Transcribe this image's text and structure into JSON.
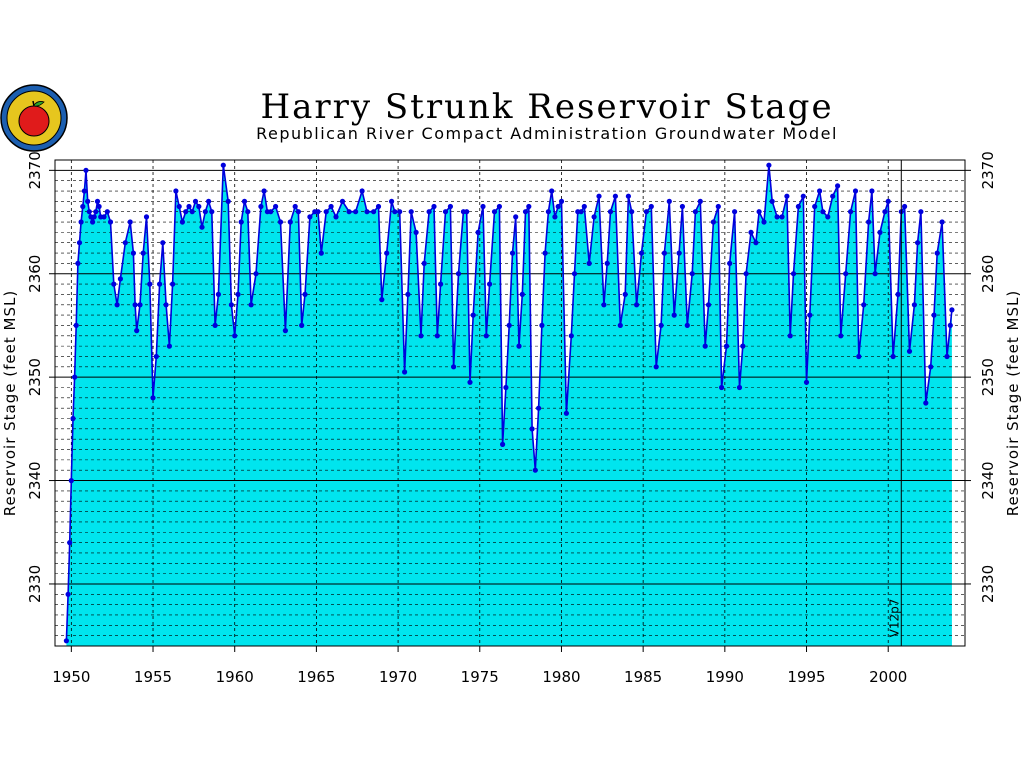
{
  "chart_data": {
    "type": "area",
    "title": "Harry Strunk Reservoir Stage",
    "subtitle": "Republican River Compact Administration Groundwater Model",
    "ylabel": "Reservoir Stage (feet MSL)",
    "xlim": [
      1949.0,
      2004.7
    ],
    "ylim": [
      2324,
      2371
    ],
    "x_ticks": [
      1950,
      1955,
      1960,
      1965,
      1970,
      1975,
      1980,
      1985,
      1990,
      1995,
      2000
    ],
    "y_ticks": [
      2330,
      2340,
      2350,
      2360,
      2370
    ],
    "grid": true,
    "fill_color": "#00e5ee",
    "line_color": "#0000dd",
    "annotation": {
      "text": "V12p7",
      "x": 2000.8
    },
    "series": [
      {
        "x": [
          1949.7,
          1949.8,
          1949.9,
          1950.0,
          1950.1,
          1950.2,
          1950.3,
          1950.4,
          1950.5,
          1950.6,
          1950.7,
          1950.8,
          1950.9,
          1951.0,
          1951.1,
          1951.2,
          1951.3,
          1951.4,
          1951.5,
          1951.6,
          1951.7,
          1951.8,
          1952.0,
          1952.2,
          1952.4,
          1952.6,
          1952.8,
          1953.0,
          1953.3,
          1953.6,
          1953.8,
          1953.9,
          1954.0,
          1954.2,
          1954.4,
          1954.6,
          1954.8,
          1955.0,
          1955.2,
          1955.4,
          1955.6,
          1955.8,
          1956.0,
          1956.2,
          1956.4,
          1956.6,
          1956.8,
          1957.0,
          1957.2,
          1957.4,
          1957.6,
          1957.8,
          1958.0,
          1958.2,
          1958.4,
          1958.6,
          1958.8,
          1959.0,
          1959.3,
          1959.6,
          1959.8,
          1960.0,
          1960.2,
          1960.4,
          1960.6,
          1960.8,
          1961.0,
          1961.3,
          1961.6,
          1961.8,
          1962.0,
          1962.2,
          1962.5,
          1962.8,
          1963.1,
          1963.4,
          1963.7,
          1963.9,
          1964.1,
          1964.3,
          1964.6,
          1964.9,
          1965.1,
          1965.3,
          1965.6,
          1965.9,
          1966.2,
          1966.6,
          1967.0,
          1967.4,
          1967.8,
          1968.1,
          1968.5,
          1968.8,
          1969.0,
          1969.3,
          1969.6,
          1969.8,
          1970.1,
          1970.4,
          1970.6,
          1970.8,
          1971.1,
          1971.4,
          1971.6,
          1971.9,
          1972.2,
          1972.4,
          1972.6,
          1972.9,
          1973.2,
          1973.4,
          1973.7,
          1974.0,
          1974.2,
          1974.4,
          1974.6,
          1974.9,
          1975.2,
          1975.4,
          1975.6,
          1975.9,
          1976.2,
          1976.4,
          1976.6,
          1976.8,
          1977.0,
          1977.2,
          1977.4,
          1977.6,
          1977.8,
          1978.0,
          1978.2,
          1978.4,
          1978.6,
          1978.8,
          1979.0,
          1979.2,
          1979.4,
          1979.6,
          1979.8,
          1980.0,
          1980.3,
          1980.6,
          1980.8,
          1981.0,
          1981.2,
          1981.4,
          1981.7,
          1982.0,
          1982.3,
          1982.6,
          1982.8,
          1983.0,
          1983.3,
          1983.6,
          1983.9,
          1984.1,
          1984.3,
          1984.6,
          1984.9,
          1985.2,
          1985.5,
          1985.8,
          1986.1,
          1986.3,
          1986.6,
          1986.9,
          1987.2,
          1987.4,
          1987.7,
          1988.0,
          1988.2,
          1988.5,
          1988.8,
          1989.0,
          1989.3,
          1989.6,
          1989.8,
          1990.1,
          1990.3,
          1990.6,
          1990.9,
          1991.1,
          1991.3,
          1991.6,
          1991.9,
          1992.1,
          1992.4,
          1992.7,
          1992.9,
          1993.2,
          1993.5,
          1993.8,
          1994.0,
          1994.2,
          1994.5,
          1994.8,
          1995.0,
          1995.2,
          1995.5,
          1995.8,
          1996.0,
          1996.3,
          1996.6,
          1996.9,
          1997.1,
          1997.4,
          1997.7,
          1998.0,
          1998.2,
          1998.5,
          1998.8,
          1999.0,
          1999.2,
          1999.5,
          1999.8,
          2000.0,
          2000.3,
          2000.6,
          2000.8,
          2001.0,
          2001.3,
          2001.6,
          2001.8,
          2002.0,
          2002.3,
          2002.6,
          2002.8,
          2003.0,
          2003.3,
          2003.6,
          2003.8,
          2003.9
        ],
        "values": [
          2324.5,
          2329.0,
          2334.0,
          2340.0,
          2346.0,
          2350.0,
          2355.0,
          2361.0,
          2363.0,
          2365.0,
          2366.5,
          2368.0,
          2370.0,
          2367.0,
          2366.0,
          2365.5,
          2365.0,
          2365.5,
          2366.0,
          2367.0,
          2366.5,
          2365.5,
          2365.5,
          2366.0,
          2365.0,
          2359.0,
          2357.0,
          2359.5,
          2363.0,
          2365.0,
          2362.0,
          2357.0,
          2354.5,
          2357.0,
          2362.0,
          2365.5,
          2359.0,
          2348.0,
          2352.0,
          2359.0,
          2363.0,
          2357.0,
          2353.0,
          2359.0,
          2368.0,
          2366.5,
          2365.0,
          2366.0,
          2366.5,
          2366.0,
          2367.0,
          2366.5,
          2364.5,
          2366.0,
          2367.0,
          2366.0,
          2355.0,
          2358.0,
          2370.5,
          2367.0,
          2357.0,
          2354.0,
          2358.0,
          2365.0,
          2367.0,
          2366.0,
          2357.0,
          2360.0,
          2366.5,
          2368.0,
          2366.0,
          2366.0,
          2366.5,
          2365.0,
          2354.5,
          2365.0,
          2366.5,
          2366.0,
          2355.0,
          2358.0,
          2365.5,
          2366.0,
          2366.0,
          2362.0,
          2366.0,
          2366.5,
          2365.5,
          2367.0,
          2366.0,
          2366.0,
          2368.0,
          2366.0,
          2366.0,
          2366.5,
          2357.5,
          2362.0,
          2367.0,
          2366.0,
          2366.0,
          2350.5,
          2358.0,
          2366.0,
          2364.0,
          2354.0,
          2361.0,
          2366.0,
          2366.5,
          2354.0,
          2359.0,
          2366.0,
          2366.5,
          2351.0,
          2360.0,
          2366.0,
          2366.0,
          2349.5,
          2356.0,
          2364.0,
          2366.5,
          2354.0,
          2359.0,
          2366.0,
          2366.5,
          2343.5,
          2349.0,
          2355.0,
          2362.0,
          2365.5,
          2353.0,
          2358.0,
          2366.0,
          2366.5,
          2345.0,
          2341.0,
          2347.0,
          2355.0,
          2362.0,
          2366.0,
          2368.0,
          2365.5,
          2366.5,
          2367.0,
          2346.5,
          2354.0,
          2360.0,
          2366.0,
          2366.0,
          2366.5,
          2361.0,
          2365.5,
          2367.5,
          2357.0,
          2361.0,
          2366.0,
          2367.5,
          2355.0,
          2358.0,
          2367.5,
          2366.0,
          2357.0,
          2362.0,
          2366.0,
          2366.5,
          2351.0,
          2355.0,
          2362.0,
          2367.0,
          2356.0,
          2362.0,
          2366.5,
          2355.0,
          2360.0,
          2366.0,
          2367.0,
          2353.0,
          2357.0,
          2365.0,
          2366.5,
          2349.0,
          2353.0,
          2361.0,
          2366.0,
          2349.0,
          2353.0,
          2360.0,
          2364.0,
          2363.0,
          2366.0,
          2365.0,
          2370.5,
          2367.0,
          2365.5,
          2365.5,
          2367.5,
          2354.0,
          2360.0,
          2366.5,
          2367.5,
          2349.5,
          2356.0,
          2366.5,
          2368.0,
          2366.0,
          2365.5,
          2367.5,
          2368.5,
          2354.0,
          2360.0,
          2366.0,
          2368.0,
          2352.0,
          2357.0,
          2365.0,
          2368.0,
          2360.0,
          2364.0,
          2366.0,
          2367.0,
          2352.0,
          2358.0,
          2366.0,
          2366.5,
          2352.5,
          2357.0,
          2363.0,
          2366.0,
          2347.5,
          2351.0,
          2356.0,
          2362.0,
          2365.0,
          2352.0,
          2355.0,
          2356.5
        ]
      }
    ]
  }
}
